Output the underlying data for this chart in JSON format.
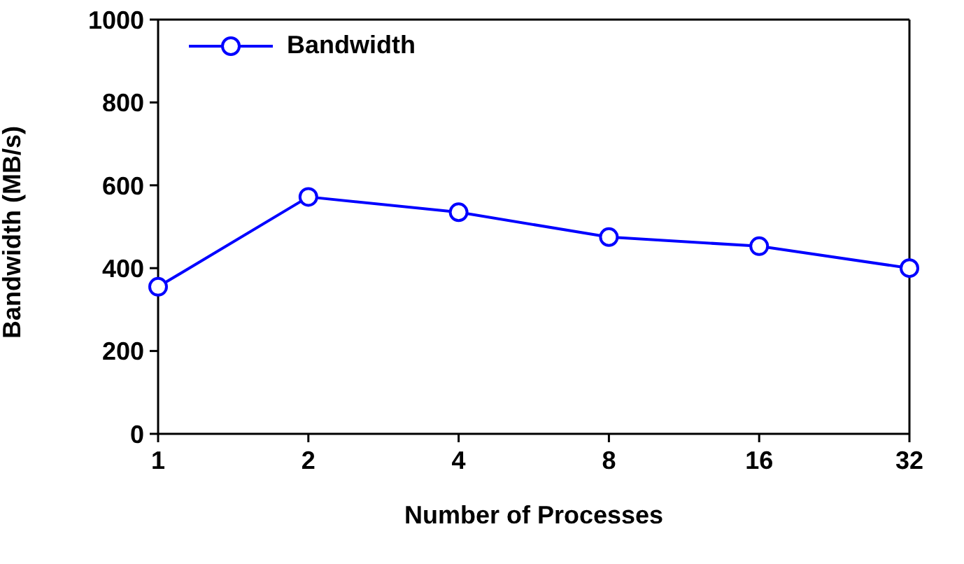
{
  "chart_data": {
    "type": "line",
    "xlabel": "Number of Processes",
    "ylabel": "Bandwidth (MB/s)",
    "categories": [
      "1",
      "2",
      "4",
      "8",
      "16",
      "32"
    ],
    "series": [
      {
        "name": "Bandwidth",
        "color": "#0000ff",
        "values": [
          355,
          572,
          535,
          475,
          453,
          400
        ]
      }
    ],
    "ylim": [
      0,
      1000
    ],
    "yticks": [
      0,
      200,
      400,
      600,
      800,
      1000
    ],
    "grid": false,
    "legend": "top left",
    "marker": "circle",
    "line_style": "solid"
  }
}
